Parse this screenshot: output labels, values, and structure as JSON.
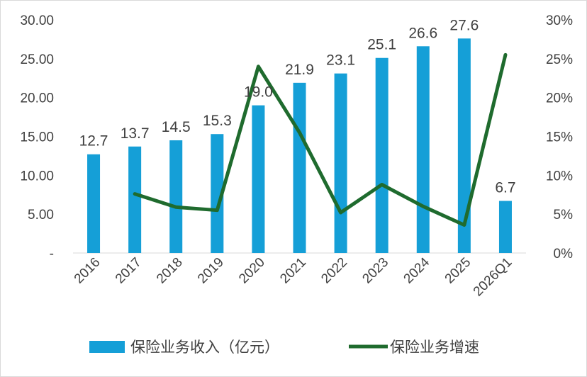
{
  "chart_data": {
    "type": "bar+line",
    "categories": [
      "2016",
      "2017",
      "2018",
      "2019",
      "2020",
      "2021",
      "2022",
      "2023",
      "2024",
      "2025",
      "2026Q1"
    ],
    "series": [
      {
        "name": "保险业务收入（亿元）",
        "type": "bar",
        "axis": "left",
        "color": "#159fd7",
        "values": [
          12.7,
          13.7,
          14.5,
          15.3,
          19.0,
          21.9,
          23.1,
          25.1,
          26.6,
          27.6,
          6.7
        ],
        "data_labels": [
          "12.7",
          "13.7",
          "14.5",
          "15.3",
          "19.0",
          "21.9",
          "23.1",
          "25.1",
          "26.6",
          "27.6",
          "6.7"
        ]
      },
      {
        "name": "保险业务增速",
        "type": "line",
        "axis": "right",
        "color": "#1f6b2e",
        "values": [
          null,
          0.076,
          0.059,
          0.055,
          0.24,
          0.155,
          0.052,
          0.088,
          0.06,
          0.036,
          0.255
        ]
      }
    ],
    "y_left": {
      "range": [
        0,
        30
      ],
      "ticks": [
        0,
        5,
        10,
        15,
        20,
        25,
        30
      ],
      "tick_labels": [
        "-",
        "5.00",
        "10.00",
        "15.00",
        "20.00",
        "25.00",
        "30.00"
      ]
    },
    "y_right": {
      "range": [
        0,
        0.3
      ],
      "ticks": [
        0,
        0.05,
        0.1,
        0.15,
        0.2,
        0.25,
        0.3
      ],
      "tick_labels": [
        "0%",
        "5%",
        "10%",
        "15%",
        "20%",
        "25%",
        "30%"
      ]
    },
    "grid": false,
    "legend": "bottom"
  }
}
